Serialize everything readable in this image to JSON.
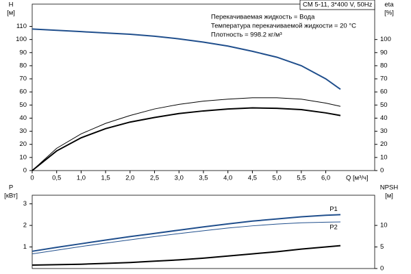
{
  "chart_data": [
    {
      "type": "line",
      "model": "CM 5-11, 3*400 V, 50Hz",
      "info": [
        "Перекачиваемая жидкость = Вода",
        "Температура перекачиваемой жидкости = 20 °C",
        "Плотность = 998.2 кг/м³"
      ],
      "y_label": [
        "H",
        "[м]"
      ],
      "y2_label": [
        "eta",
        "[%]"
      ],
      "x_label": "Q [м³/ч]",
      "x": [
        0,
        0.5,
        1,
        1.5,
        2,
        2.5,
        3,
        3.5,
        4,
        4.5,
        5,
        5.5,
        6,
        6.3
      ],
      "xlim": [
        0,
        7
      ],
      "xticks": [
        0,
        {
          "value": 0.5,
          "label": "0,5"
        },
        {
          "value": 1,
          "label": "1,0"
        },
        {
          "value": 1.5,
          "label": "1,5"
        },
        {
          "value": 2,
          "label": "2,0"
        },
        {
          "value": 2.5,
          "label": "2,5"
        },
        {
          "value": 3,
          "label": "3,0"
        },
        {
          "value": 3.5,
          "label": "3,5"
        },
        {
          "value": 4,
          "label": "4,0"
        },
        {
          "value": 4.5,
          "label": "4,5"
        },
        {
          "value": 5,
          "label": "5,0"
        },
        {
          "value": 5.5,
          "label": "5,5"
        },
        {
          "value": 6,
          "label": "6,0"
        }
      ],
      "ylim": [
        0,
        127
      ],
      "yticks": [
        0,
        10,
        20,
        30,
        40,
        50,
        60,
        70,
        80,
        90,
        100,
        110
      ],
      "y2lim": [
        0,
        127
      ],
      "y2ticks": [
        0,
        10,
        20,
        30,
        40,
        50,
        60,
        70,
        80,
        90,
        100
      ],
      "series": [
        {
          "color": "#1f4e8c",
          "width": 2,
          "values": [
            108,
            107,
            106,
            105,
            104,
            102.5,
            100.5,
            98,
            95,
            91,
            86.5,
            80,
            70,
            62
          ]
        },
        {
          "color": "#000000",
          "width": 1,
          "axis": "y2",
          "values": [
            0,
            17,
            28,
            36,
            42,
            47,
            50.5,
            53,
            54.5,
            55.5,
            55.5,
            54.5,
            51.5,
            49
          ]
        },
        {
          "color": "#000000",
          "width": 2,
          "axis": "y2",
          "values": [
            0,
            15,
            25,
            32,
            37,
            40.5,
            43.5,
            45.5,
            47,
            47.8,
            47.5,
            46.5,
            44,
            42
          ]
        }
      ]
    },
    {
      "type": "line",
      "y_label": [
        "P",
        "[кВт]"
      ],
      "y2_label": [
        "NPSH",
        "[м]"
      ],
      "x": [
        0,
        0.5,
        1,
        1.5,
        2,
        2.5,
        3,
        3.5,
        4,
        4.5,
        5,
        5.5,
        6,
        6.3
      ],
      "xlim": [
        0,
        7
      ],
      "ylim": [
        0,
        3.4
      ],
      "yticks": [
        1,
        2,
        3
      ],
      "y2lim": [
        0,
        17
      ],
      "y2ticks": [
        0,
        5,
        10
      ],
      "series": [
        {
          "name": "P1",
          "color": "#1f4e8c",
          "width": 2,
          "values": [
            0.8,
            0.98,
            1.15,
            1.32,
            1.48,
            1.63,
            1.78,
            1.93,
            2.07,
            2.2,
            2.3,
            2.4,
            2.47,
            2.5
          ]
        },
        {
          "name": "P2",
          "color": "#1f4e8c",
          "width": 1,
          "values": [
            0.68,
            0.85,
            1.02,
            1.18,
            1.33,
            1.48,
            1.62,
            1.75,
            1.88,
            1.98,
            2.06,
            2.12,
            2.15,
            2.16
          ]
        },
        {
          "color": "#000000",
          "width": 2,
          "axis": "y2",
          "values": [
            0.8,
            0.9,
            1.0,
            1.2,
            1.4,
            1.7,
            2.0,
            2.4,
            2.9,
            3.4,
            3.9,
            4.5,
            5.0,
            5.3
          ]
        }
      ]
    }
  ]
}
